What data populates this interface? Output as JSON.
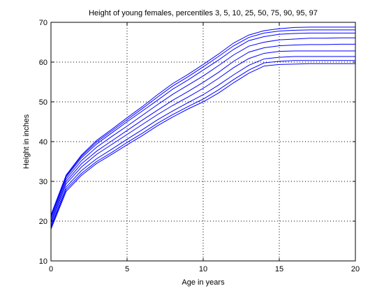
{
  "chart_data": {
    "type": "line",
    "title": "Height of young females, percentiles 3, 5, 10, 25, 50, 75, 90, 95, 97",
    "xlabel": "Age in years",
    "ylabel": "Height in inches",
    "xlim": [
      0,
      20
    ],
    "ylim": [
      10,
      70
    ],
    "xticks": [
      0,
      5,
      10,
      15,
      20
    ],
    "yticks": [
      10,
      20,
      30,
      40,
      50,
      60,
      70
    ],
    "grid": true,
    "line_color": "#0000ff",
    "x": [
      0,
      1,
      2,
      3,
      4,
      5,
      6,
      7,
      8,
      9,
      10,
      11,
      12,
      13,
      14,
      15,
      16,
      17,
      18,
      19,
      20
    ],
    "series": [
      {
        "values": [
          18.0,
          27.5,
          31.5,
          34.5,
          36.8,
          39.2,
          41.5,
          44.0,
          46.2,
          48.2,
          50.0,
          52.2,
          54.8,
          57.2,
          59.0,
          59.4,
          59.5,
          59.6,
          59.6,
          59.6,
          59.6
        ]
      },
      {
        "values": [
          18.4,
          28.0,
          32.0,
          35.0,
          37.3,
          39.8,
          42.1,
          44.6,
          46.8,
          48.8,
          50.7,
          53.0,
          55.6,
          58.0,
          59.8,
          60.2,
          60.4,
          60.4,
          60.4,
          60.4,
          60.4
        ]
      },
      {
        "values": [
          18.9,
          28.6,
          32.7,
          35.7,
          38.1,
          40.6,
          43.0,
          45.5,
          47.7,
          49.8,
          51.8,
          54.2,
          56.8,
          59.2,
          60.8,
          61.2,
          61.4,
          61.4,
          61.4,
          61.4,
          61.4
        ]
      },
      {
        "values": [
          19.5,
          29.4,
          33.6,
          36.8,
          39.3,
          41.8,
          44.3,
          46.8,
          49.1,
          51.2,
          53.4,
          55.9,
          58.6,
          60.9,
          62.2,
          62.7,
          62.8,
          62.8,
          62.8,
          62.8,
          62.8
        ]
      },
      {
        "values": [
          20.0,
          30.0,
          34.4,
          37.6,
          40.2,
          42.8,
          45.4,
          47.9,
          50.4,
          52.6,
          54.9,
          57.4,
          60.2,
          62.5,
          63.6,
          64.1,
          64.3,
          64.4,
          64.4,
          64.5,
          64.5
        ]
      },
      {
        "values": [
          20.6,
          30.6,
          35.2,
          38.6,
          41.3,
          43.9,
          46.6,
          49.3,
          51.9,
          54.2,
          56.5,
          59.1,
          61.8,
          64.0,
          65.0,
          65.6,
          65.8,
          66.0,
          66.0,
          66.1,
          66.1
        ]
      },
      {
        "values": [
          21.1,
          31.1,
          35.9,
          39.4,
          42.2,
          45.0,
          47.7,
          50.4,
          53.2,
          55.5,
          58.0,
          60.5,
          63.2,
          65.4,
          66.4,
          67.0,
          67.2,
          67.3,
          67.3,
          67.3,
          67.3
        ]
      },
      {
        "values": [
          21.4,
          31.4,
          36.3,
          39.9,
          42.7,
          45.5,
          48.3,
          51.2,
          54.0,
          56.3,
          58.8,
          61.4,
          64.1,
          66.2,
          67.3,
          67.8,
          68.0,
          68.1,
          68.1,
          68.1,
          68.1
        ]
      },
      {
        "values": [
          21.6,
          31.6,
          36.6,
          40.3,
          43.1,
          46.0,
          48.8,
          51.8,
          54.6,
          56.9,
          59.4,
          62.0,
          64.8,
          66.8,
          67.9,
          68.4,
          68.7,
          68.8,
          68.8,
          68.8,
          68.8
        ]
      }
    ]
  }
}
